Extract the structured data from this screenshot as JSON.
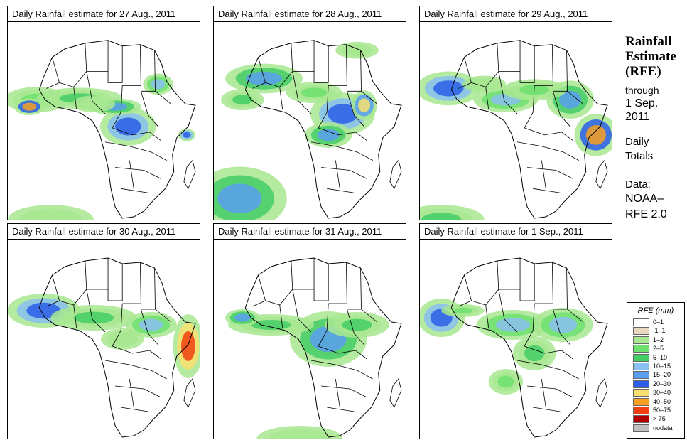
{
  "panels": [
    {
      "title": "Daily Rainfall estimate for  27 Aug., 2011",
      "pattern": "p27"
    },
    {
      "title": "Daily Rainfall estimate for  28 Aug., 2011",
      "pattern": "p28"
    },
    {
      "title": "Daily Rainfall estimate for  29 Aug., 2011",
      "pattern": "p29"
    },
    {
      "title": "Daily Rainfall estimate for  30 Aug., 2011",
      "pattern": "p30"
    },
    {
      "title": "Daily Rainfall estimate for  31 Aug., 2011",
      "pattern": "p31"
    },
    {
      "title": "Daily Rainfall estimate for  1 Sep., 2011",
      "pattern": "p1"
    }
  ],
  "side": {
    "title_line1": "Rainfall",
    "title_line2": "Estimate",
    "title_line3": "(RFE)",
    "through": "through",
    "date_line1": "1 Sep.",
    "date_line2": "2011",
    "daily": "Daily",
    "totals": "Totals",
    "data_label": "Data:",
    "source_line1": "NOAA–",
    "source_line2": "RFE 2.0"
  },
  "legend": {
    "title": "RFE (mm)",
    "items": [
      {
        "label": "0–1",
        "color": "#ffffff"
      },
      {
        "label": ".1–1",
        "color": "#e8d8c0"
      },
      {
        "label": "1–2",
        "color": "#a8e890"
      },
      {
        "label": "2–5",
        "color": "#6ee06e"
      },
      {
        "label": "5–10",
        "color": "#44cc66"
      },
      {
        "label": "10–15",
        "color": "#88c0f0"
      },
      {
        "label": "15–20",
        "color": "#5a9ff0"
      },
      {
        "label": "20–30",
        "color": "#2a5ee8"
      },
      {
        "label": "30–40",
        "color": "#f8e070"
      },
      {
        "label": "40–50",
        "color": "#f8a020"
      },
      {
        "label": "50–75",
        "color": "#f04010"
      },
      {
        "label": "> 75",
        "color": "#b00000"
      },
      {
        "label": "nodata",
        "color": "#c0c0c0"
      }
    ]
  }
}
